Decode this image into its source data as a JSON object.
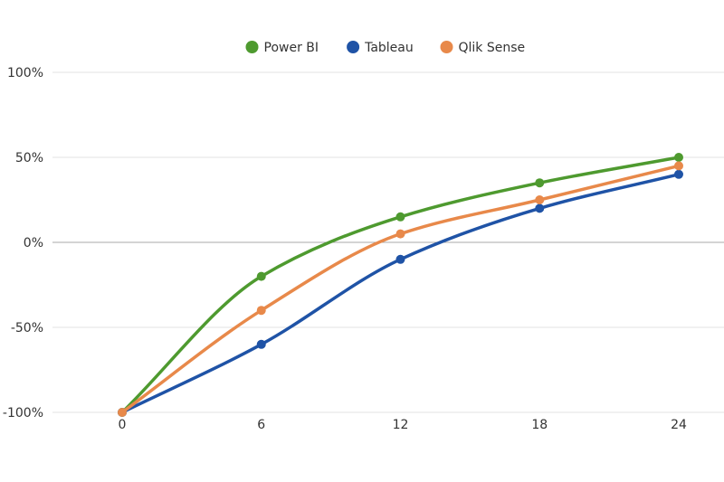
{
  "chart_data": {
    "type": "line",
    "title": "",
    "xlabel": "",
    "ylabel": "",
    "x": [
      0,
      6,
      12,
      18,
      24
    ],
    "x_tick_labels": [
      "0",
      "6",
      "12",
      "18",
      "24"
    ],
    "y_tick_values": [
      -100,
      -50,
      0,
      50,
      100
    ],
    "y_tick_labels": [
      "-100%",
      "-50%",
      "0%",
      "50%",
      "100%"
    ],
    "ylim": [
      -100,
      100
    ],
    "xlim": [
      0,
      24
    ],
    "grid": "horizontal",
    "legend_position": "top-center",
    "smooth": true,
    "series": [
      {
        "name": "Power BI",
        "color": "#4e9a2f",
        "values": [
          -100,
          -20,
          15,
          35,
          50
        ]
      },
      {
        "name": "Tableau",
        "color": "#1f53a6",
        "values": [
          -100,
          -60,
          -10,
          20,
          40
        ]
      },
      {
        "name": "Qlik Sense",
        "color": "#e8894a",
        "values": [
          -100,
          -40,
          5,
          25,
          45
        ]
      }
    ]
  }
}
